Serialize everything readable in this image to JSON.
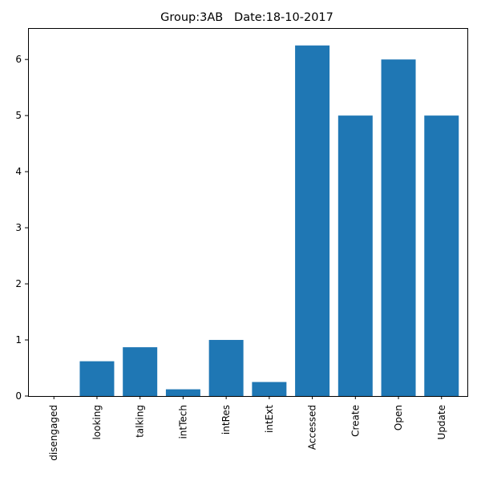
{
  "chart_data": {
    "type": "bar",
    "title": "Group:3AB   Date:18-10-2017",
    "xlabel": "",
    "ylabel": "",
    "categories": [
      "disengaged",
      "looking",
      "talking",
      "intTech",
      "intRes",
      "intExt",
      "Accessed",
      "Create",
      "Open",
      "Update"
    ],
    "values": [
      0,
      0.62,
      0.87,
      0.12,
      1.0,
      0.25,
      6.25,
      5.0,
      6.0,
      5.0
    ],
    "ylim": [
      0,
      6.56
    ],
    "yticks": [
      0,
      1,
      2,
      3,
      4,
      5,
      6
    ],
    "bar_color": "#1f77b4",
    "grid": false,
    "legend": "none"
  }
}
